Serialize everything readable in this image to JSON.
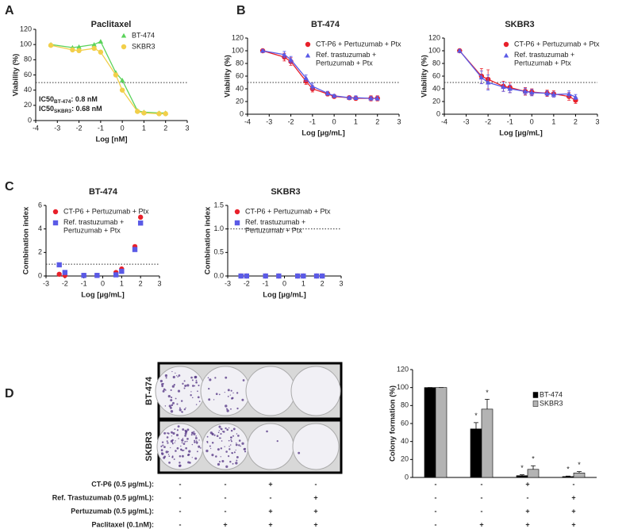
{
  "panel_labels": [
    "A",
    "B",
    "C",
    "D"
  ],
  "colony_images": {
    "rows": [
      "BT-474",
      "SKBR3"
    ]
  },
  "chart_data": [
    {
      "type": "line",
      "title": "Paclitaxel",
      "x_label": "Log [nM]",
      "y_label": "Viability (%)",
      "xlim": [
        -4,
        3
      ],
      "xticks": [
        -4,
        -3,
        -2,
        -1,
        0,
        1,
        2,
        3
      ],
      "ylim": [
        0,
        120
      ],
      "yticks": [
        0,
        20,
        40,
        60,
        80,
        100,
        120
      ],
      "reference_line": 50,
      "legend": "upper right",
      "x": [
        -3.3,
        -2.3,
        -2,
        -1.3,
        -1,
        -0.3,
        0,
        0.7,
        1,
        1.7,
        2
      ],
      "series": [
        {
          "name": "BT-474",
          "color": "#5ad35a",
          "marker": "triangle",
          "values": [
            100,
            96,
            97,
            100,
            104,
            63,
            53,
            13,
            11,
            10,
            10
          ]
        },
        {
          "name": "SKBR3",
          "color": "#f2cf4a",
          "marker": "circle",
          "values": [
            99,
            93,
            92,
            95,
            90,
            60,
            40,
            12,
            10,
            9,
            9
          ]
        }
      ],
      "annotations": [
        {
          "text": "IC50",
          "subscript": "BT-474",
          "suffix": ": 0.8 nM"
        },
        {
          "text": "IC50",
          "subscript": "SKBR3",
          "suffix": ": 0.68 nM"
        }
      ]
    },
    {
      "type": "line",
      "title": "BT-474",
      "x_label": "Log [µg/mL]",
      "y_label": "Viability (%)",
      "xlim": [
        -4,
        3
      ],
      "xticks": [
        -4,
        -3,
        -2,
        -1,
        0,
        1,
        2,
        3
      ],
      "ylim": [
        0,
        120
      ],
      "yticks": [
        0,
        20,
        40,
        60,
        80,
        100,
        120
      ],
      "reference_line": 50,
      "legend": "upper right",
      "x": [
        -3.3,
        -2.3,
        -2,
        -1.3,
        -1,
        -0.3,
        0,
        0.7,
        1,
        1.7,
        2
      ],
      "series": [
        {
          "name": "CT-P6 + Pertuzumab + Ptx",
          "color": "#e8202a",
          "marker": "circle",
          "values": [
            100,
            90,
            83,
            52,
            40,
            32,
            28,
            26,
            25,
            25,
            25
          ],
          "errors": [
            2,
            6,
            6,
            5,
            5,
            3,
            2,
            2,
            3,
            4,
            4
          ]
        },
        {
          "name": "Ref. trastuzumab +\nPertuzumab + Ptx",
          "color": "#5a5ae6",
          "marker": "triangle",
          "values": [
            100,
            94,
            86,
            57,
            44,
            33,
            29,
            26,
            26,
            25,
            25
          ],
          "errors": [
            2,
            5,
            5,
            5,
            5,
            3,
            2,
            2,
            3,
            3,
            3
          ]
        }
      ]
    },
    {
      "type": "line",
      "title": "SKBR3",
      "x_label": "Log [µg/mL]",
      "y_label": "Viability (%)",
      "xlim": [
        -4,
        3
      ],
      "xticks": [
        -4,
        -3,
        -2,
        -1,
        0,
        1,
        2,
        3
      ],
      "ylim": [
        0,
        120
      ],
      "yticks": [
        0,
        20,
        40,
        60,
        80,
        100,
        120
      ],
      "reference_line": 50,
      "legend": "upper right",
      "x": [
        -3.3,
        -2.3,
        -2,
        -1.3,
        -1,
        -0.3,
        0,
        0.7,
        1,
        1.7,
        2
      ],
      "series": [
        {
          "name": "CT-P6 + Pertuzumab + Ptx",
          "color": "#e8202a",
          "marker": "circle",
          "values": [
            100,
            60,
            55,
            44,
            42,
            36,
            35,
            33,
            32,
            28,
            22
          ],
          "errors": [
            2,
            12,
            15,
            8,
            8,
            6,
            5,
            5,
            5,
            6,
            5
          ]
        },
        {
          "name": "Ref. trastuzumab +\nPertuzumab + Ptx",
          "color": "#5a5ae6",
          "marker": "triangle",
          "values": [
            100,
            58,
            50,
            43,
            40,
            36,
            34,
            33,
            31,
            32,
            27
          ],
          "errors": [
            2,
            10,
            12,
            7,
            6,
            5,
            5,
            4,
            4,
            5,
            4
          ]
        }
      ]
    },
    {
      "type": "scatter",
      "title": "BT-474",
      "x_label": "Log [µg/mL]",
      "y_label": "Combination index",
      "xlim": [
        -3,
        3
      ],
      "xticks": [
        -3,
        -2,
        -1,
        0,
        1,
        2,
        3
      ],
      "ylim": [
        0,
        6
      ],
      "yticks": [
        0,
        2,
        4,
        6
      ],
      "reference_line": 1,
      "legend": "upper left",
      "x": [
        -2.3,
        -2,
        -1,
        -0.3,
        0.7,
        1,
        1.7,
        2
      ],
      "series": [
        {
          "name": "CT-P6 + Pertuzumab + Ptx",
          "color": "#e8202a",
          "marker": "circle",
          "values": [
            0.15,
            0.05,
            0.05,
            0.05,
            0.3,
            0.6,
            2.5,
            5.0
          ]
        },
        {
          "name": "Ref. trastuzumab +\nPertuzumab + Ptx",
          "color": "#5a5ae6",
          "marker": "square",
          "values": [
            0.95,
            0.3,
            0.05,
            0.05,
            0.1,
            0.4,
            2.25,
            4.5
          ]
        }
      ]
    },
    {
      "type": "scatter",
      "title": "SKBR3",
      "x_label": "Log [µg/mL]",
      "y_label": "Combination index",
      "xlim": [
        -3,
        3
      ],
      "xticks": [
        -3,
        -2,
        -1,
        0,
        1,
        2,
        3
      ],
      "ylim": [
        0,
        1.5
      ],
      "yticks": [
        {
          "value": 0,
          "label": "0.0"
        },
        0.5,
        {
          "value": 1,
          "label": "1.0"
        },
        1.5
      ],
      "reference_line": 1,
      "legend": "upper left",
      "x": [
        -2.3,
        -2,
        -1,
        -0.3,
        0.7,
        1,
        1.7,
        2
      ],
      "series": [
        {
          "name": "CT-P6 + Pertuzumab + Ptx",
          "color": "#e8202a",
          "marker": "circle",
          "values": [
            0,
            0,
            0,
            0,
            0,
            0,
            0,
            0
          ]
        },
        {
          "name": "Ref. trastuzumab +\nPertuzumab + Ptx",
          "color": "#5a5ae6",
          "marker": "square",
          "values": [
            0,
            0,
            0,
            0,
            0,
            0,
            0,
            0
          ]
        }
      ]
    },
    {
      "type": "bar",
      "y_label": "Colony formation (%)",
      "ylim": [
        0,
        120
      ],
      "yticks": [
        0,
        20,
        40,
        60,
        80,
        100,
        120
      ],
      "legend": "upper right",
      "categories": [
        null,
        null,
        null,
        null
      ],
      "series": [
        {
          "name": "BT-474",
          "color": "#000000",
          "values": [
            100,
            54,
            2,
            1
          ],
          "errors": [
            0,
            7,
            1,
            0.5
          ],
          "markers": [
            null,
            "*",
            "*",
            "*"
          ]
        },
        {
          "name": "SKBR3",
          "color": "#b3b3b3",
          "values": [
            100,
            76,
            9,
            5
          ],
          "errors": [
            0,
            11,
            4,
            1.5
          ],
          "markers": [
            null,
            "*",
            "*",
            "*"
          ]
        }
      ],
      "conditions": [
        {
          "label": "CT-P6 (0.5 µg/mL):",
          "values": [
            "-",
            "-",
            "+",
            "-"
          ]
        },
        {
          "label": "Ref. Trastuzumab (0.5 µg/mL):",
          "values": [
            "-",
            "-",
            "-",
            "+"
          ]
        },
        {
          "label": "Pertuzumab (0.5 µg/mL):",
          "values": [
            "-",
            "-",
            "+",
            "+"
          ]
        },
        {
          "label": "Paclitaxel (0.1nM):",
          "values": [
            "-",
            "+",
            "+",
            "+"
          ]
        }
      ]
    }
  ]
}
